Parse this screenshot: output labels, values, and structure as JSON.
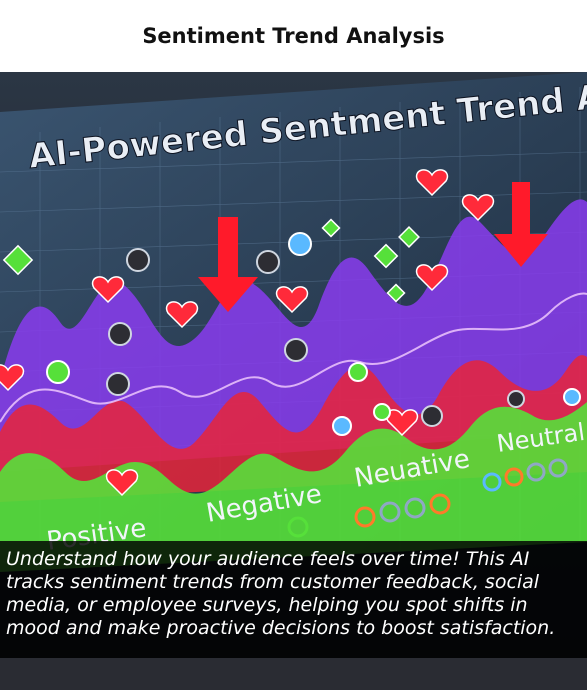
{
  "page": {
    "title": "Sentiment Trend Analysis"
  },
  "hero": {
    "headline": "AI-Powered Sentment Trend Analysis",
    "labels": {
      "positive": "Positive",
      "negative": "Negative",
      "neuative": "Neuative",
      "neutral": "Neutral"
    },
    "colors": {
      "background": "#1e2733",
      "purple_wave": "#8a3cf0",
      "red_wave": "#e8243a",
      "green_wave": "#56e03a",
      "arrow": "#ff1a2a",
      "heart": "#ff2a3a"
    }
  },
  "caption": {
    "text": "Understand how your audience feels over time! This AI tracks sentiment trends from customer feedback, social media, or employee surveys, helping you spot shifts in mood and make proactive decisions to boost satisfaction."
  }
}
